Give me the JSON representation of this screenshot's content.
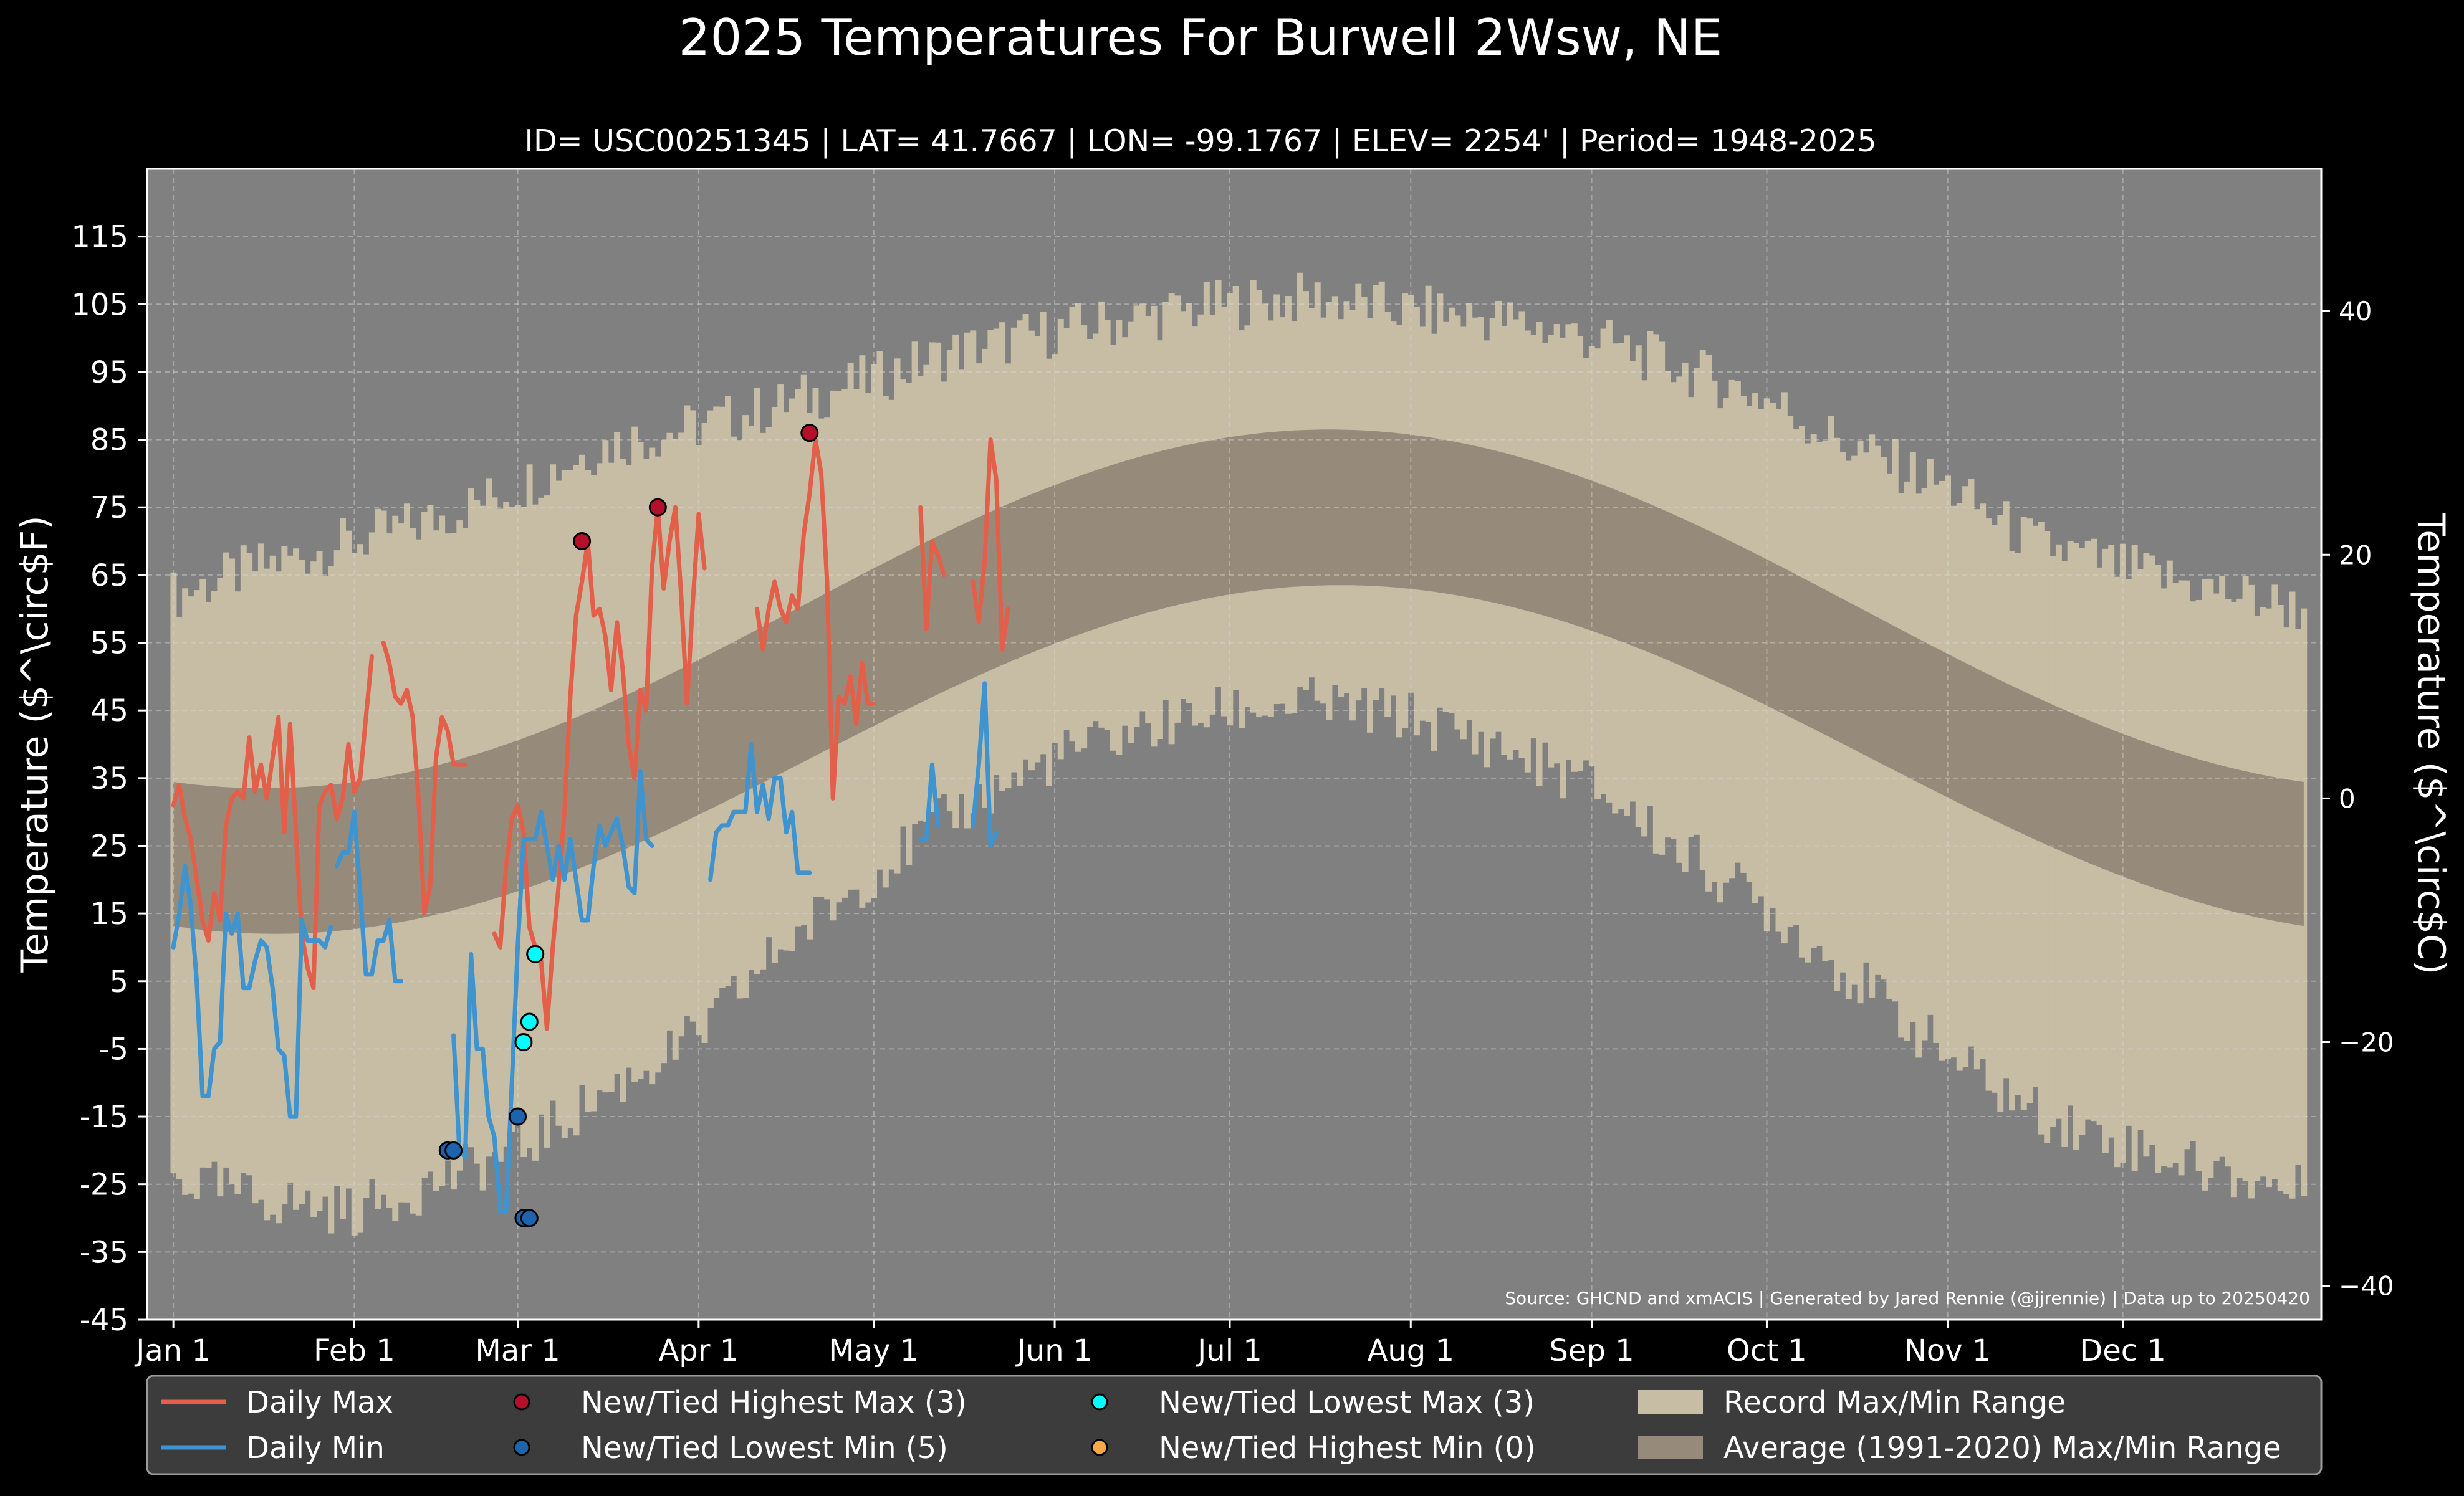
{
  "chart_data": {
    "type": "line",
    "title": "2025 Temperatures For Burwell 2Wsw, NE",
    "subtitle": "ID= USC00251345 | LAT= 41.7667 | LON= -99.1767 | ELEV= 2254' | Period= 1948-2025",
    "ylabel_left": "Temperature ($^\\circ$F)",
    "ylabel_right": "Temperature ($^\\circ$C)",
    "ylim_f": [
      -45,
      125
    ],
    "yticks_f": [
      -45,
      -35,
      -25,
      -15,
      -5,
      5,
      15,
      25,
      35,
      45,
      55,
      65,
      75,
      85,
      95,
      105,
      115
    ],
    "yticks_c": [
      -40,
      -20,
      0,
      20,
      40
    ],
    "x_ticks": [
      {
        "label": "Jan 1",
        "day": 1
      },
      {
        "label": "Feb 1",
        "day": 32
      },
      {
        "label": "Mar 1",
        "day": 60
      },
      {
        "label": "Apr 1",
        "day": 91
      },
      {
        "label": "May 1",
        "day": 121
      },
      {
        "label": "Jun 1",
        "day": 152
      },
      {
        "label": "Jul 1",
        "day": 182
      },
      {
        "label": "Aug 1",
        "day": 213
      },
      {
        "label": "Sep 1",
        "day": 244
      },
      {
        "label": "Oct 1",
        "day": 274
      },
      {
        "label": "Nov 1",
        "day": 305
      },
      {
        "label": "Dec 1",
        "day": 335
      }
    ],
    "xlim_days": [
      -3.5,
      369
    ],
    "source_note": "Source: GHCND and xmACIS | Generated by Jared Rennie (@jjrennie) | Data up to 20250420",
    "colors": {
      "background": "#000000",
      "plot_bg": "#808080",
      "record_range": "#c6bda4",
      "normal_range": "#968b7b",
      "daily_max": "#e35f4a",
      "daily_min": "#3f93cf",
      "highest_max": "#b5102a",
      "lowest_min": "#1d63ad",
      "lowest_max": "#00ffff",
      "highest_min": "#f7a94a",
      "text": "#ffffff",
      "legend_bg": "#3c3c3c"
    },
    "record_max_anchors": [
      [
        1,
        62
      ],
      [
        15,
        66
      ],
      [
        32,
        70
      ],
      [
        45,
        73
      ],
      [
        60,
        78
      ],
      [
        74,
        84
      ],
      [
        91,
        87
      ],
      [
        105,
        90
      ],
      [
        121,
        94
      ],
      [
        135,
        98
      ],
      [
        152,
        101
      ],
      [
        166,
        103
      ],
      [
        182,
        105
      ],
      [
        196,
        106
      ],
      [
        213,
        104
      ],
      [
        227,
        103
      ],
      [
        244,
        100
      ],
      [
        258,
        96
      ],
      [
        274,
        91
      ],
      [
        288,
        84
      ],
      [
        305,
        78
      ],
      [
        319,
        70
      ],
      [
        335,
        66
      ],
      [
        350,
        63
      ],
      [
        365,
        60
      ]
    ],
    "record_min_anchors": [
      [
        1,
        -24
      ],
      [
        15,
        -27
      ],
      [
        32,
        -29
      ],
      [
        45,
        -25
      ],
      [
        60,
        -20
      ],
      [
        74,
        -12
      ],
      [
        91,
        -3
      ],
      [
        105,
        10
      ],
      [
        121,
        21
      ],
      [
        135,
        30
      ],
      [
        152,
        38
      ],
      [
        166,
        42
      ],
      [
        182,
        45
      ],
      [
        196,
        46
      ],
      [
        213,
        44
      ],
      [
        227,
        40
      ],
      [
        244,
        34
      ],
      [
        258,
        25
      ],
      [
        274,
        16
      ],
      [
        288,
        6
      ],
      [
        305,
        -6
      ],
      [
        319,
        -14
      ],
      [
        335,
        -19
      ],
      [
        350,
        -23
      ],
      [
        365,
        -26
      ]
    ],
    "normal_max_peak": {
      "min": 33.5,
      "max": 86.5,
      "peak_day": 199
    },
    "normal_min_peak": {
      "min": 12,
      "max": 63.5,
      "peak_day": 201
    },
    "series": [
      {
        "name": "Daily Max",
        "segments": [
          {
            "start_day": 1,
            "values": [
              31,
              34,
              29,
              26,
              20,
              14,
              11,
              18,
              14,
              28,
              32,
              33,
              32,
              41,
              33,
              37,
              32,
              38,
              44,
              27,
              43,
              27,
              12,
              7,
              4,
              31,
              33,
              34,
              29,
              32,
              40,
              33,
              35,
              44,
              53
            ]
          },
          {
            "start_day": 37,
            "values": [
              55,
              52,
              47,
              46,
              48,
              44,
              32,
              15,
              19,
              38,
              44,
              42,
              37,
              37,
              37
            ]
          },
          {
            "start_day": 56,
            "values": [
              12,
              10,
              22,
              29,
              31,
              27,
              13,
              10,
              8,
              -2,
              10,
              19,
              30,
              47,
              59,
              64,
              70,
              59,
              60,
              56,
              48,
              58,
              51,
              40,
              35,
              48,
              45,
              66,
              75,
              63,
              70,
              75,
              62,
              46,
              61,
              74,
              66
            ]
          },
          {
            "start_day": 101,
            "values": [
              60,
              54,
              60,
              64,
              60,
              58,
              62,
              60,
              71,
              77,
              85,
              80,
              64,
              32,
              47,
              46,
              50,
              43,
              52,
              46,
              46
            ]
          },
          {
            "start_day": 129,
            "values": [
              75,
              57,
              70,
              68,
              65
            ]
          },
          {
            "start_day": 138,
            "values": [
              64,
              58,
              67,
              85,
              79,
              54,
              60
            ]
          }
        ]
      },
      {
        "name": "Daily Min",
        "segments": [
          {
            "start_day": 1,
            "values": [
              10,
              15,
              22,
              16,
              5,
              -12,
              -12,
              -5,
              -4,
              15,
              12,
              15,
              4,
              4,
              8,
              11,
              10,
              4,
              -5,
              -6,
              -15,
              -15,
              14,
              11,
              11,
              11,
              10,
              13
            ]
          },
          {
            "start_day": 29,
            "values": [
              22,
              24,
              24,
              30,
              18,
              6,
              6,
              11,
              11,
              14,
              5,
              5
            ]
          },
          {
            "start_day": 49,
            "values": [
              -3,
              -20,
              -21,
              9,
              -5,
              -5,
              -15,
              -18,
              -29,
              -29,
              -10,
              10,
              26,
              26,
              26,
              30,
              25,
              20,
              25,
              20,
              26,
              20,
              14,
              14,
              22,
              28,
              25,
              27,
              29,
              25,
              19,
              18,
              36,
              26,
              25
            ]
          },
          {
            "start_day": 93,
            "values": [
              20,
              27,
              28,
              28,
              30,
              30,
              30,
              40,
              30,
              34,
              29,
              35,
              35,
              27,
              30,
              21,
              21,
              21
            ]
          },
          {
            "start_day": 129,
            "values": [
              26,
              26,
              37,
              28
            ]
          },
          {
            "start_day": 138,
            "values": [
              28,
              37,
              49,
              25,
              27
            ]
          }
        ]
      }
    ],
    "records": [
      {
        "name": "New/Tied Highest Max (3)",
        "points": [
          [
            71,
            70
          ],
          [
            84,
            75
          ],
          [
            110,
            86
          ]
        ]
      },
      {
        "name": "New/Tied Lowest Min (5)",
        "points": [
          [
            48,
            -20
          ],
          [
            49,
            -20
          ],
          [
            60,
            -15
          ],
          [
            61,
            -30
          ],
          [
            62,
            -30
          ]
        ]
      },
      {
        "name": "New/Tied Lowest Max (3)",
        "points": [
          [
            61,
            -4
          ],
          [
            62,
            -1
          ],
          [
            63,
            9
          ]
        ]
      },
      {
        "name": "New/Tied Highest Min (0)",
        "points": []
      }
    ],
    "legend": {
      "placement": "bottom",
      "entries": [
        {
          "label": "Daily Max",
          "kind": "line",
          "color_key": "daily_max"
        },
        {
          "label": "Daily Min",
          "kind": "line",
          "color_key": "daily_min"
        },
        {
          "label": "New/Tied Highest Max (3)",
          "kind": "dot",
          "color_key": "highest_max"
        },
        {
          "label": "New/Tied Lowest Min (5)",
          "kind": "dot",
          "color_key": "lowest_min"
        },
        {
          "label": "New/Tied Lowest Max (3)",
          "kind": "dot",
          "color_key": "lowest_max"
        },
        {
          "label": "New/Tied Highest Min (0)",
          "kind": "dot",
          "color_key": "highest_min"
        },
        {
          "label": "Record Max/Min Range",
          "kind": "patch",
          "color_key": "record_range"
        },
        {
          "label": "Average (1991-2020) Max/Min Range",
          "kind": "patch",
          "color_key": "normal_range"
        }
      ]
    },
    "grid": true
  }
}
